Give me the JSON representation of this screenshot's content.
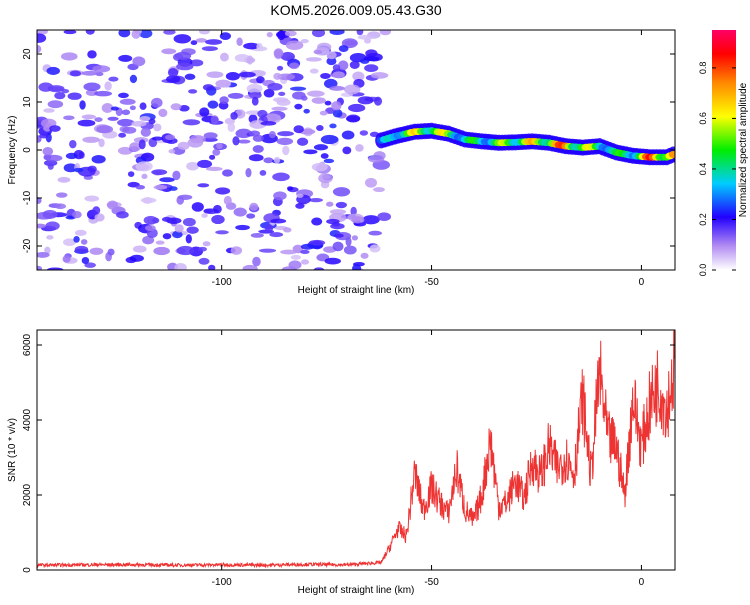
{
  "title": "KOM5.2026.009.05.43.G30",
  "chart_data": [
    {
      "type": "heatmap",
      "name": "spectrogram",
      "xlabel": "Height of straight line (km)",
      "ylabel": "Frequency (Hz)",
      "xlim": [
        -144,
        8
      ],
      "ylim": [
        -25,
        25
      ],
      "xticks": [
        -100,
        -50,
        0
      ],
      "yticks": [
        -20,
        -10,
        0,
        10,
        20
      ],
      "xtick_labels": [
        "-100",
        "-50",
        "0"
      ],
      "ytick_labels": [
        "-20",
        "-10",
        "0",
        "10",
        "20"
      ],
      "colorbar": {
        "label": "Normalized spectral amplitude",
        "range": [
          0,
          0.95
        ],
        "ticks": [
          0,
          0.2,
          0.4,
          0.6,
          0.8
        ],
        "tick_labels": [
          "0.0",
          "0.2",
          "0.4",
          "0.6",
          "0.8"
        ]
      },
      "noise_region": {
        "x_range": [
          -144,
          -61
        ],
        "amplitude": [
          0.05,
          0.25
        ]
      },
      "signal_ridge": {
        "x": [
          -62,
          -58,
          -54,
          -50,
          -46,
          -42,
          -38,
          -34,
          -30,
          -26,
          -22,
          -18,
          -14,
          -10,
          -6,
          -2,
          2,
          6,
          8
        ],
        "frequency": [
          2.0,
          3.0,
          3.8,
          4.0,
          3.4,
          2.2,
          1.8,
          1.5,
          1.6,
          1.8,
          1.5,
          0.8,
          0.5,
          0.8,
          -0.5,
          -1.2,
          -1.5,
          -1.5,
          -0.8
        ],
        "amplitude": [
          0.3,
          0.6,
          0.7,
          0.75,
          0.65,
          0.5,
          0.55,
          0.6,
          0.7,
          0.75,
          0.8,
          0.9,
          0.7,
          0.6,
          0.5,
          0.6,
          0.9,
          0.95,
          0.85
        ]
      }
    },
    {
      "type": "line",
      "name": "snr",
      "xlabel": "Height of straight line (km)",
      "ylabel": "SNR (10 * v/v)",
      "xlim": [
        -144,
        8
      ],
      "ylim": [
        0,
        6400
      ],
      "xticks": [
        -100,
        -50,
        0
      ],
      "yticks": [
        0,
        2000,
        4000,
        6000
      ],
      "xtick_labels": [
        "-100",
        "-50",
        "0"
      ],
      "ytick_labels": [
        "0",
        "2000",
        "4000",
        "6000"
      ],
      "color": "#ee3333",
      "series": [
        {
          "name": "SNR",
          "x": [
            -144,
            -130,
            -120,
            -110,
            -100,
            -90,
            -80,
            -70,
            -62,
            -60,
            -58,
            -56,
            -54,
            -52,
            -50,
            -48,
            -46,
            -44,
            -42,
            -40,
            -38,
            -36,
            -34,
            -32,
            -30,
            -28,
            -26,
            -24,
            -22,
            -20,
            -18,
            -16,
            -14,
            -12,
            -10,
            -8,
            -6,
            -4,
            -2,
            0,
            2,
            4,
            6,
            8
          ],
          "values": [
            130,
            140,
            140,
            130,
            140,
            130,
            150,
            140,
            200,
            600,
            1100,
            900,
            2600,
            1600,
            2200,
            1800,
            1500,
            2700,
            1600,
            1300,
            2000,
            3500,
            1700,
            1800,
            2400,
            1900,
            2900,
            2500,
            3300,
            2700,
            3000,
            2600,
            4600,
            2500,
            5300,
            3500,
            3300,
            2000,
            4600,
            3300,
            4400,
            5000,
            4300,
            5500
          ]
        }
      ]
    }
  ]
}
